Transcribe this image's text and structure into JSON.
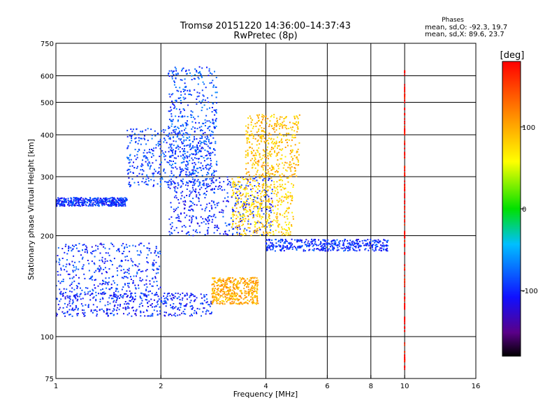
{
  "chart_data": {
    "type": "scatter",
    "title": "Tromsø 20151220 14:36:00–14:37:43",
    "subtitle": "RwPretec (8p)",
    "xlabel": "Frequency [MHz]",
    "ylabel": "Stationary phase Virtual Height [km]",
    "x_scale": "log",
    "y_scale": "log",
    "xlim": [
      1,
      16
    ],
    "ylim": [
      75,
      750
    ],
    "x_ticks": [
      "1",
      "2",
      "4",
      "6",
      "8",
      "10",
      "16"
    ],
    "y_ticks": [
      "75",
      "100",
      "200",
      "300",
      "400",
      "500",
      "600",
      "750"
    ],
    "x_gridlines": [
      2,
      4,
      6,
      8,
      10
    ],
    "y_gridlines": [
      100,
      200,
      300,
      400,
      500,
      600
    ],
    "grid": true,
    "phase_box": {
      "heading": "Phases",
      "line1": "mean, sd,O: -92.3, 19.7",
      "line2": "mean, sd,X: 89.6, 23.7"
    },
    "colorbar": {
      "label": "[deg]",
      "ticks": [
        "100",
        "0",
        "-100"
      ],
      "tick_values": [
        100,
        0,
        -100
      ],
      "range": [
        -180,
        180
      ],
      "colormap": "rainbow (black-purple-blue-cyan-green-yellow-orange-red)"
    },
    "traces": [
      {
        "f_min": 1.0,
        "f_max": 1.6,
        "h_min": 245,
        "h_max": 260,
        "phase": -95
      },
      {
        "f_min": 1.0,
        "f_max": 2.8,
        "h_min": 115,
        "h_max": 135,
        "phase": -100
      },
      {
        "f_min": 1.0,
        "f_max": 2.0,
        "h_min": 130,
        "h_max": 190,
        "phase": -95
      },
      {
        "f_min": 1.6,
        "f_max": 2.8,
        "h_min": 280,
        "h_max": 420,
        "phase": -90
      },
      {
        "f_min": 2.1,
        "f_max": 2.9,
        "h_min": 300,
        "h_max": 640,
        "phase": -85
      },
      {
        "f_min": 2.1,
        "f_max": 4.2,
        "h_min": 200,
        "h_max": 300,
        "phase": -100
      },
      {
        "f_min": 2.8,
        "f_max": 3.8,
        "h_min": 125,
        "h_max": 150,
        "phase": 100
      },
      {
        "f_min": 3.2,
        "f_max": 4.8,
        "h_min": 200,
        "h_max": 300,
        "phase": 80
      },
      {
        "f_min": 3.5,
        "f_max": 5.0,
        "h_min": 300,
        "h_max": 460,
        "phase": 90
      },
      {
        "f_min": 4.0,
        "f_max": 9.0,
        "h_min": 180,
        "h_max": 195,
        "phase": -95
      },
      {
        "f_min": 10.0,
        "f_max": 10.0,
        "h_min": 80,
        "h_max": 630,
        "phase": 175
      }
    ]
  }
}
